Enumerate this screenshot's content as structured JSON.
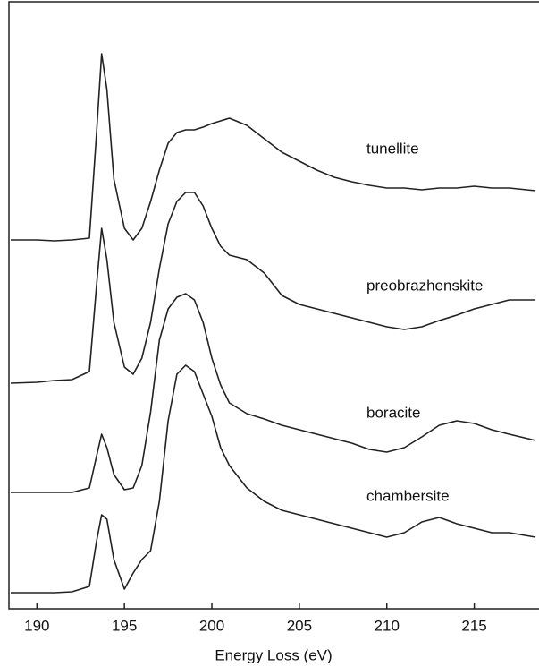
{
  "chart_data": {
    "type": "line",
    "x_label": "Energy Loss (eV)",
    "x": [
      188.5,
      190,
      191,
      192,
      193,
      193.4,
      193.7,
      194,
      194.4,
      195,
      195.5,
      196,
      196.5,
      197,
      197.5,
      198,
      198.5,
      199,
      199.5,
      200,
      200.5,
      201,
      202,
      203,
      204,
      205,
      206,
      207,
      208,
      209,
      210,
      211,
      212,
      213,
      214,
      215,
      216,
      217,
      218.5
    ],
    "series": [
      {
        "name": "tunellite",
        "color": "#222222",
        "values": [
          412,
          412,
          411,
          412,
          414,
          530,
          620,
          580,
          480,
          425,
          412,
          425,
          455,
          490,
          520,
          532,
          535,
          535,
          538,
          542,
          545,
          548,
          540,
          525,
          510,
          500,
          490,
          482,
          477,
          473,
          470,
          470,
          468,
          470,
          470,
          472,
          470,
          470,
          467
        ]
      },
      {
        "name": "preobrazhenskite",
        "color": "#222222",
        "values": [
          252,
          253,
          255,
          256,
          265,
          360,
          425,
          390,
          320,
          270,
          262,
          280,
          320,
          380,
          430,
          455,
          465,
          465,
          450,
          425,
          405,
          395,
          390,
          375,
          350,
          340,
          335,
          330,
          325,
          320,
          315,
          312,
          315,
          322,
          328,
          335,
          340,
          345,
          345
        ]
      },
      {
        "name": "boracite",
        "color": "#222222",
        "values": [
          130,
          130,
          130,
          130,
          135,
          170,
          195,
          180,
          150,
          133,
          135,
          160,
          220,
          300,
          335,
          348,
          352,
          345,
          320,
          280,
          250,
          230,
          218,
          212,
          205,
          200,
          195,
          190,
          185,
          178,
          175,
          180,
          192,
          205,
          210,
          207,
          200,
          195,
          188
        ]
      },
      {
        "name": "chambersite",
        "color": "#222222",
        "values": [
          18,
          18,
          18,
          19,
          25,
          75,
          105,
          100,
          55,
          22,
          40,
          55,
          65,
          120,
          210,
          262,
          272,
          265,
          240,
          215,
          180,
          160,
          135,
          120,
          110,
          105,
          100,
          95,
          90,
          85,
          80,
          85,
          97,
          102,
          95,
          90,
          85,
          85,
          80
        ]
      }
    ],
    "xlim": [
      188.4,
      218.7
    ],
    "xticks": [
      190,
      195,
      200,
      205,
      210,
      215
    ],
    "ylim": [
      0,
      678
    ]
  }
}
